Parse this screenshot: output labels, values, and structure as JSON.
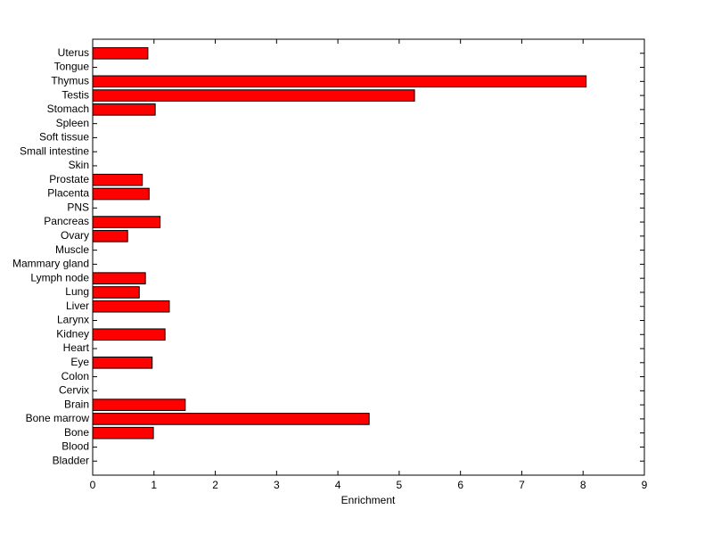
{
  "chart_data": {
    "type": "barh",
    "x_label": "Enrichment",
    "categories": [
      "Bladder",
      "Blood",
      "Bone",
      "Bone marrow",
      "Brain",
      "Cervix",
      "Colon",
      "Eye",
      "Heart",
      "Kidney",
      "Larynx",
      "Liver",
      "Lung",
      "Lymph node",
      "Mammary gland",
      "Muscle",
      "Ovary",
      "Pancreas",
      "PNS",
      "Placenta",
      "Prostate",
      "Skin",
      "Small intestine",
      "Soft tissue",
      "Spleen",
      "Stomach",
      "Testis",
      "Thymus",
      "Tongue",
      "Uterus"
    ],
    "values": [
      0,
      0,
      0.99,
      4.51,
      1.51,
      0,
      0,
      0.97,
      0,
      1.18,
      0,
      1.25,
      0.76,
      0.86,
      0,
      0,
      0.57,
      1.1,
      0,
      0.92,
      0.81,
      0,
      0,
      0,
      0,
      1.02,
      5.25,
      8.05,
      0,
      0.9
    ],
    "color": "#ff0000",
    "xlim": [
      0,
      9
    ],
    "xticks": [
      0,
      1,
      2,
      3,
      4,
      5,
      6,
      7,
      8,
      9
    ]
  }
}
